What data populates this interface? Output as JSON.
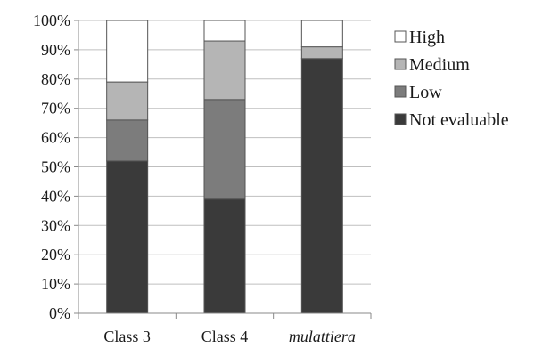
{
  "chart_data": {
    "type": "bar",
    "stacked": true,
    "categories": [
      "Class 3",
      "Class 4",
      "mulattiera"
    ],
    "category_styles": [
      "normal",
      "normal",
      "italic"
    ],
    "series": [
      {
        "name": "Not evaluable",
        "color": "#3a3a3a",
        "values": [
          52,
          39,
          87
        ]
      },
      {
        "name": "Low",
        "color": "#7c7c7c",
        "values": [
          14,
          34,
          0
        ]
      },
      {
        "name": "Medium",
        "color": "#b5b5b5",
        "values": [
          13,
          20,
          4
        ]
      },
      {
        "name": "High",
        "color": "#ffffff",
        "values": [
          21,
          7,
          9
        ]
      }
    ],
    "y_ticks": [
      "0%",
      "10%",
      "20%",
      "30%",
      "40%",
      "50%",
      "60%",
      "70%",
      "80%",
      "90%",
      "100%"
    ],
    "ylim": [
      0,
      100
    ],
    "grid": true,
    "legend": {
      "placement": "right",
      "order": [
        "High",
        "Medium",
        "Low",
        "Not evaluable"
      ]
    },
    "gridline_color": "#bfbfbf",
    "outline_color": "#555555"
  }
}
